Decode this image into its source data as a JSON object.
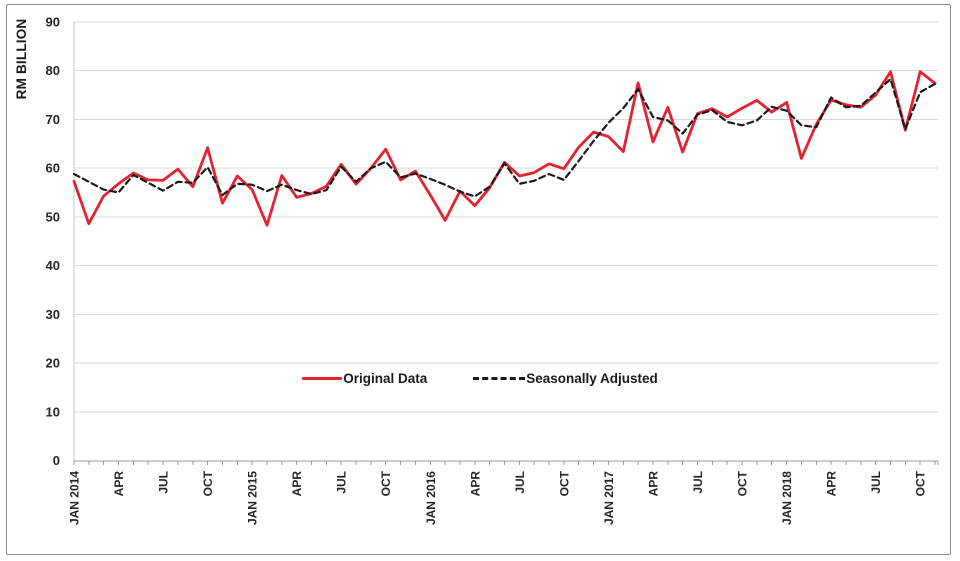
{
  "chart_data": {
    "type": "line",
    "title": "",
    "ylabel": "RM BILLION",
    "xlabel": "",
    "ylim": [
      0,
      90
    ],
    "yticks": [
      0,
      10,
      20,
      30,
      40,
      50,
      60,
      70,
      80,
      90
    ],
    "x_unit": "month",
    "x_range": [
      "JAN 2014",
      "NOV 2018"
    ],
    "grid": "horizontal",
    "legend_position": "center-inside",
    "xtick_labels": [
      {
        "index": 0,
        "label": "JAN 2014"
      },
      {
        "index": 3,
        "label": "APR"
      },
      {
        "index": 6,
        "label": "JUL"
      },
      {
        "index": 9,
        "label": "OCT"
      },
      {
        "index": 12,
        "label": "JAN 2015"
      },
      {
        "index": 15,
        "label": "APR"
      },
      {
        "index": 18,
        "label": "JUL"
      },
      {
        "index": 21,
        "label": "OCT"
      },
      {
        "index": 24,
        "label": "JAN 2016"
      },
      {
        "index": 27,
        "label": "APR"
      },
      {
        "index": 30,
        "label": "JUL"
      },
      {
        "index": 33,
        "label": "OCT"
      },
      {
        "index": 36,
        "label": "JAN 2017"
      },
      {
        "index": 39,
        "label": "APR"
      },
      {
        "index": 42,
        "label": "JUL"
      },
      {
        "index": 45,
        "label": "OCT"
      },
      {
        "index": 48,
        "label": "JAN 2018"
      },
      {
        "index": 51,
        "label": "APR"
      },
      {
        "index": 54,
        "label": "JUL"
      },
      {
        "index": 57,
        "label": "OCT"
      }
    ],
    "series": [
      {
        "name": "Original Data",
        "style": "solid",
        "color": "#e32430",
        "values": [
          57.3,
          48.6,
          54.3,
          56.8,
          59.0,
          57.6,
          57.5,
          59.8,
          56.2,
          64.2,
          52.8,
          58.4,
          55.6,
          48.3,
          58.5,
          54.0,
          54.8,
          56.3,
          60.8,
          56.7,
          60.0,
          63.9,
          57.6,
          59.4,
          54.5,
          49.3,
          55.3,
          52.3,
          56.0,
          61.2,
          58.4,
          59.1,
          60.9,
          59.9,
          64.3,
          67.4,
          66.5,
          63.4,
          77.5,
          65.4,
          72.5,
          63.3,
          71.2,
          72.2,
          70.5,
          72.3,
          73.9,
          71.5,
          73.5,
          62.0,
          69.0,
          74.0,
          73.0,
          72.5,
          75.0,
          79.8,
          67.8,
          79.8,
          77.4
        ]
      },
      {
        "name": "Seasonally Adjusted",
        "style": "dashed",
        "color": "#1a1a1a",
        "values": [
          58.8,
          57.2,
          55.6,
          55.0,
          58.6,
          57.0,
          55.4,
          57.2,
          57.0,
          60.2,
          54.5,
          56.8,
          56.6,
          55.3,
          56.6,
          55.5,
          54.7,
          55.5,
          60.3,
          57.2,
          60.0,
          61.3,
          58.1,
          58.9,
          57.8,
          56.6,
          55.2,
          54.2,
          56.2,
          61.0,
          56.8,
          57.4,
          58.8,
          57.6,
          61.5,
          65.6,
          69.3,
          72.3,
          76.2,
          70.5,
          69.8,
          67.1,
          71.0,
          71.9,
          69.5,
          68.8,
          69.8,
          72.6,
          71.8,
          68.8,
          68.4,
          74.5,
          72.5,
          72.8,
          75.5,
          78.3,
          68.0,
          75.6,
          77.3
        ]
      }
    ]
  },
  "colors": {
    "grid": "#dadada",
    "axis": "#9b9b9b",
    "y_axis_line": "#c6c6c6",
    "tick_text": "#262626",
    "frame_border": "#8f8f8f"
  }
}
